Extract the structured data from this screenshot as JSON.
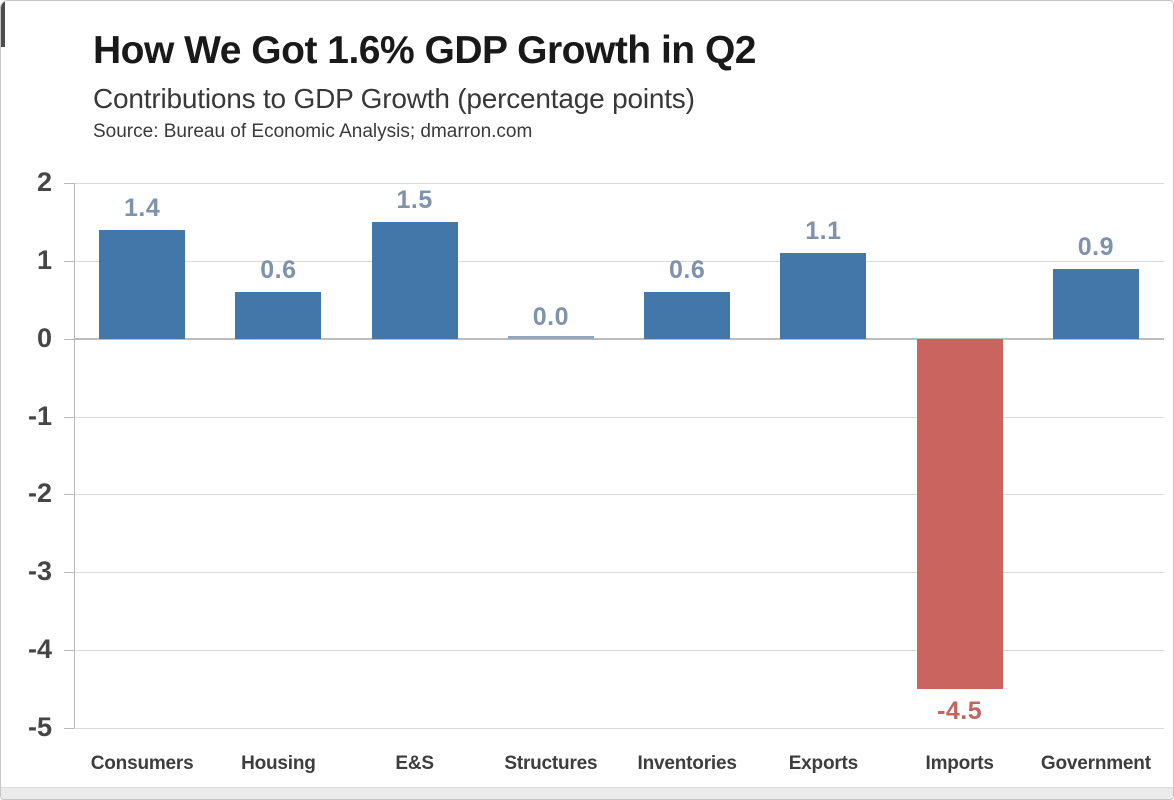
{
  "header": {
    "title": "How We Got 1.6% GDP Growth in Q2",
    "subtitle": "Contributions to GDP Growth (percentage points)",
    "source": "Source: Bureau of Economic Analysis; dmarron.com"
  },
  "chart_data": {
    "type": "bar",
    "title": "How We Got 1.6% GDP Growth in Q2",
    "subtitle": "Contributions to GDP Growth (percentage points)",
    "source": "Source: Bureau of Economic Analysis; dmarron.com",
    "categories": [
      "Consumers",
      "Housing",
      "E&S",
      "Structures",
      "Inventories",
      "Exports",
      "Imports",
      "Government"
    ],
    "values": [
      1.4,
      0.6,
      1.5,
      0.0,
      0.6,
      1.1,
      -4.5,
      0.9
    ],
    "value_labels": [
      "1.4",
      "0.6",
      "1.5",
      "0.0",
      "0.6",
      "1.1",
      "-4.5",
      "0.9"
    ],
    "xlabel": "",
    "ylabel": "",
    "ylim": [
      -5,
      2
    ],
    "yticks": [
      2,
      1,
      0,
      -1,
      -2,
      -3,
      -4,
      -5
    ],
    "grid": true,
    "legend": false,
    "colors": {
      "positive_bar": "#4477A9",
      "negative_bar": "#C9645E",
      "zero_bar": "#93A6B8",
      "positive_label": "#7E93AB",
      "negative_label": "#C16560",
      "gridline": "#dadada",
      "axis": "#b8b8b8"
    }
  }
}
